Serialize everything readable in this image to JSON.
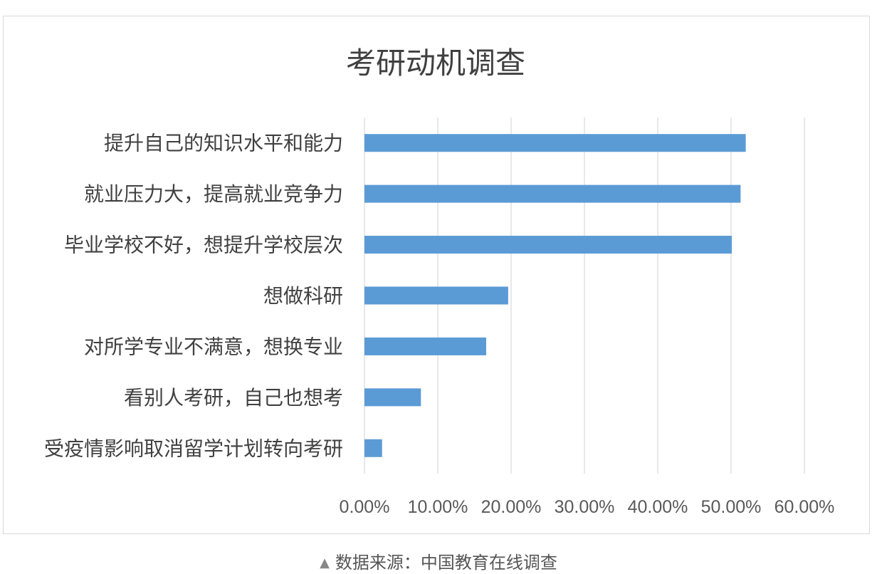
{
  "chart_data": {
    "type": "bar",
    "orientation": "horizontal",
    "title": "考研动机调查",
    "categories": [
      "提升自己的知识水平和能力",
      "就业压力大，提高就业竞争力",
      "毕业学校不好，想提升学校层次",
      "想做科研",
      "对所学专业不满意，想换专业",
      "看别人考研，自己也想考",
      "受疫情影响取消留学计划转向考研"
    ],
    "values": [
      52.0,
      51.3,
      50.1,
      19.6,
      16.6,
      7.7,
      2.4
    ],
    "value_unit": "%",
    "xlim": [
      0,
      60
    ],
    "ticks": [
      "0.00%",
      "10.00%",
      "20.00%",
      "30.00%",
      "40.00%",
      "50.00%",
      "60.00%"
    ],
    "tick_values": [
      0,
      10,
      20,
      30,
      40,
      50,
      60
    ],
    "grid": "vertical",
    "legend": "none",
    "bar_color": "#5b9bd5"
  },
  "caption": {
    "marker": "▲",
    "text": "数据来源：中国教育在线调查"
  }
}
